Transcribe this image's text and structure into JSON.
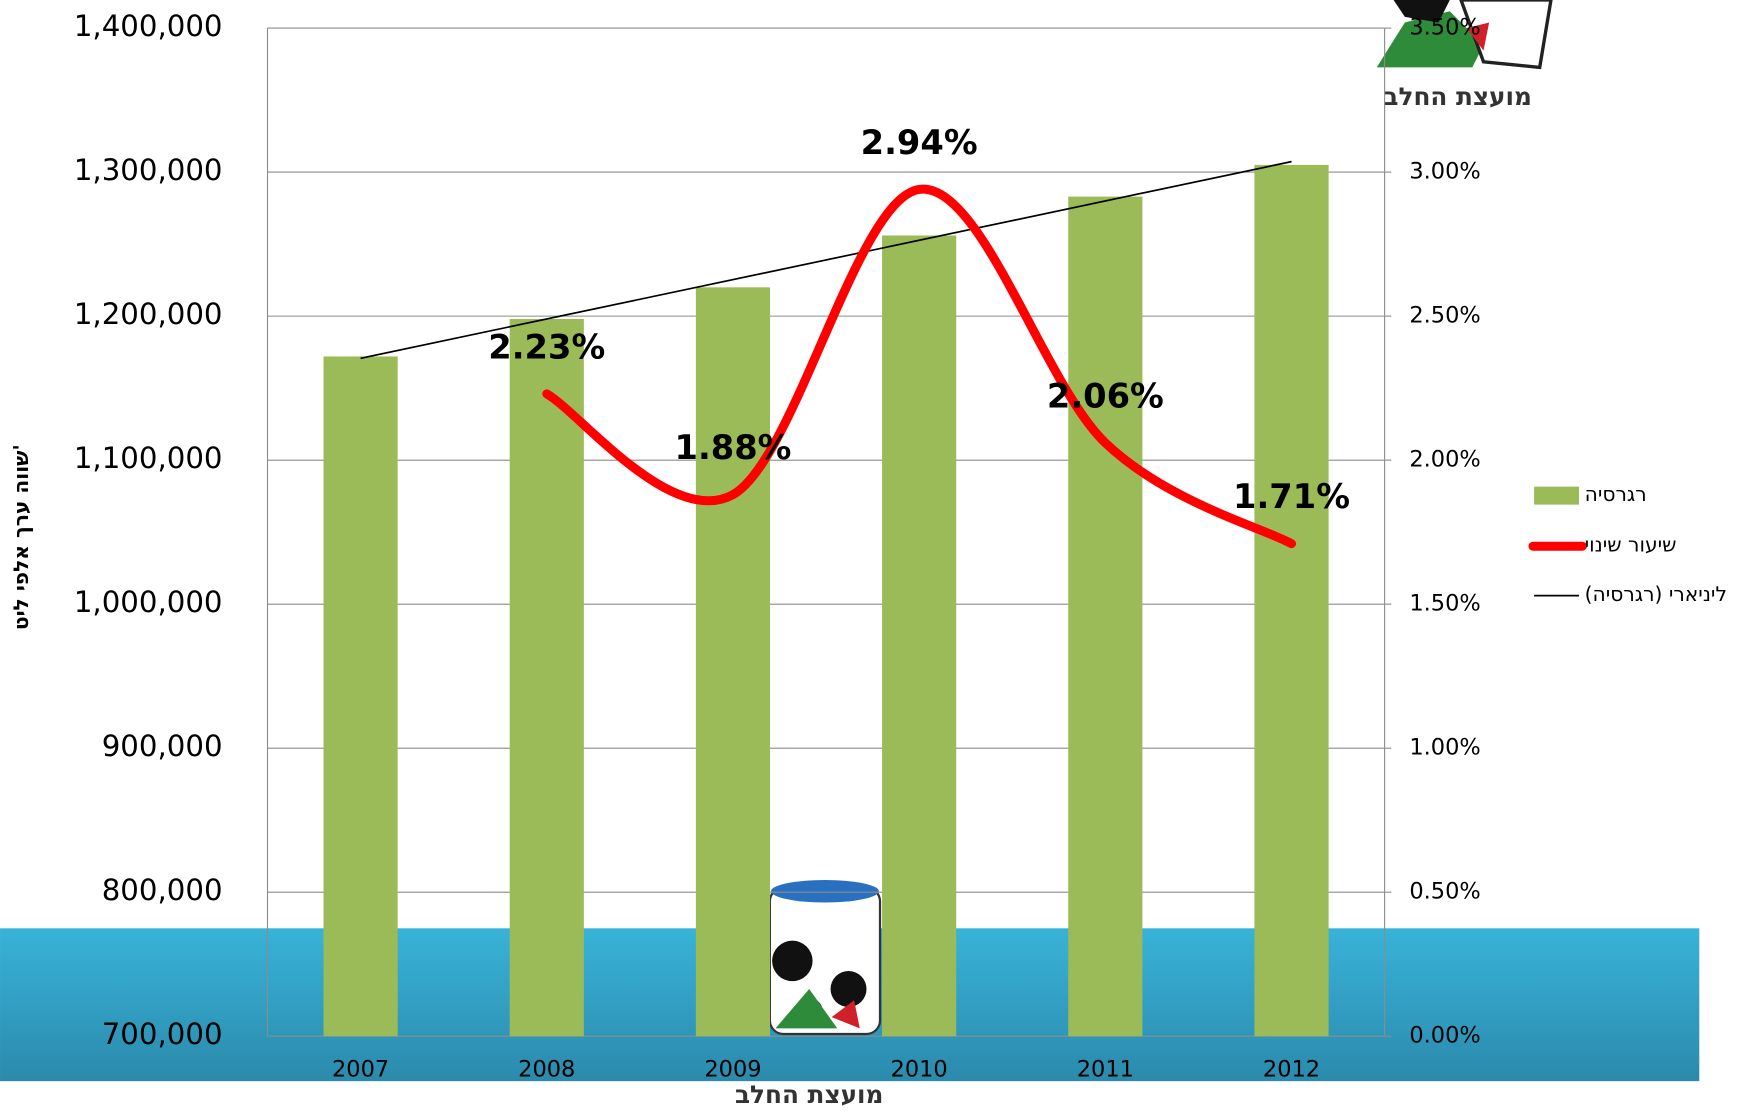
{
  "chart_data": {
    "type": "bar_line",
    "y_axis_title": "שווה ערך אלפי ליט'",
    "categories": [
      "2007",
      "2008",
      "2009",
      "2010",
      "2011",
      "2012"
    ],
    "series": [
      {
        "name": "רגרסיה",
        "color": "#9bbb59",
        "type": "bar",
        "values": [
          1172000,
          1198000,
          1220000,
          1256000,
          1283000,
          1305000
        ]
      },
      {
        "name": "שיעור שינוי",
        "color": "#ff0000",
        "type": "line",
        "axis": "y2",
        "values": [
          null,
          2.23,
          1.88,
          2.94,
          2.06,
          1.71
        ],
        "value_labels": [
          null,
          "2.23%",
          "1.88%",
          "2.94%",
          "2.06%",
          "1.71%"
        ]
      }
    ],
    "trendline": {
      "name": "ליניארי (רגרסיה)",
      "color": "#000000"
    },
    "ylim": [
      700000,
      1400000
    ],
    "yticks": [
      {
        "value": 700000,
        "label": "700,000"
      },
      {
        "value": 800000,
        "label": "800,000"
      },
      {
        "value": 900000,
        "label": "900,000"
      },
      {
        "value": 1000000,
        "label": "1,000,000"
      },
      {
        "value": 1100000,
        "label": "1,100,000"
      },
      {
        "value": 1200000,
        "label": "1,200,000"
      },
      {
        "value": 1300000,
        "label": "1,300,000"
      },
      {
        "value": 1400000,
        "label": "1,400,000"
      }
    ],
    "y2lim": [
      0,
      3.5
    ],
    "y2ticks": [
      {
        "value": 0,
        "label": "0.00%"
      },
      {
        "value": 0.5,
        "label": "0.50%"
      },
      {
        "value": 1,
        "label": "1.00%"
      },
      {
        "value": 1.5,
        "label": "1.50%"
      },
      {
        "value": 2,
        "label": "2.00%"
      },
      {
        "value": 2.5,
        "label": "2.50%"
      },
      {
        "value": 3,
        "label": "3.00%"
      },
      {
        "value": 3.5,
        "label": "3.50%"
      }
    ],
    "grid": true
  },
  "logo_text": [
    "מועצת החלב",
    "מועצת החלב"
  ]
}
